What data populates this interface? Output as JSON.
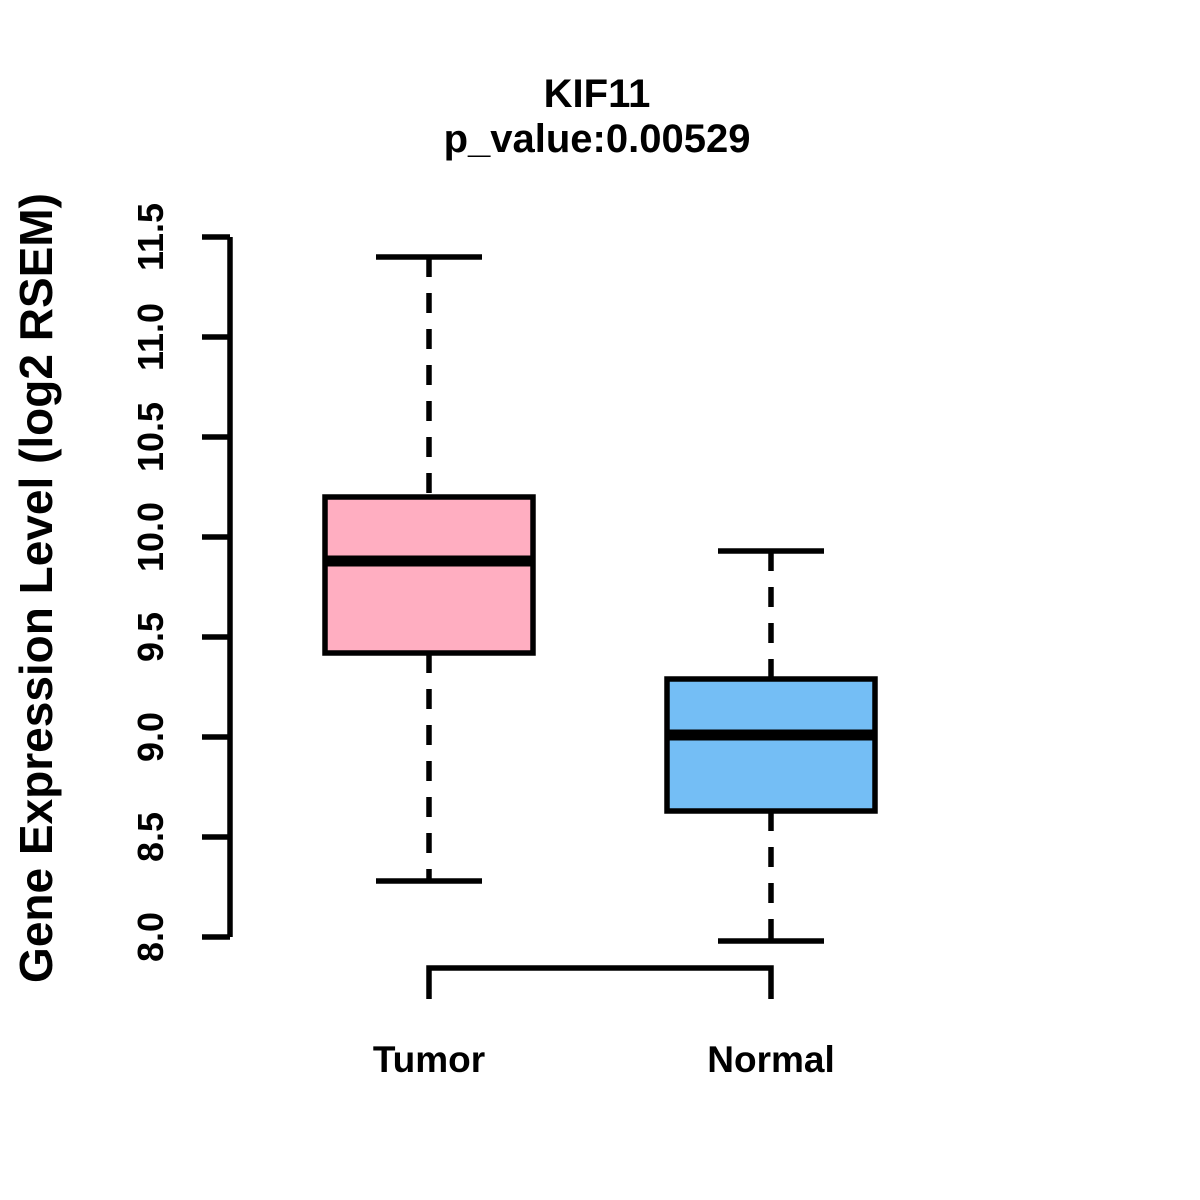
{
  "header": {
    "title": "KIF11",
    "subtitle": "p_value:0.00529"
  },
  "chart_data": {
    "type": "boxplot",
    "title": "KIF11",
    "subtitle": "p_value:0.00529",
    "xlabel": "",
    "ylabel": "Gene Expression Level (log2 RSEM)",
    "categories": [
      "Tumor",
      "Normal"
    ],
    "series": [
      {
        "name": "Tumor",
        "color": "#FFAEC1",
        "whisker_low": 8.28,
        "q1": 9.42,
        "median": 9.88,
        "q3": 10.2,
        "whisker_high": 11.4
      },
      {
        "name": "Normal",
        "color": "#74BEF5",
        "whisker_low": 7.98,
        "q1": 8.63,
        "median": 9.01,
        "q3": 9.29,
        "whisker_high": 9.93
      }
    ],
    "ylim": [
      8.0,
      11.5
    ],
    "yticks": [
      8.0,
      8.5,
      9.0,
      9.5,
      10.0,
      10.5,
      11.0,
      11.5
    ],
    "ytick_labels": [
      "8.0",
      "8.5",
      "9.0",
      "9.5",
      "10.0",
      "10.5",
      "11.0",
      "11.5"
    ],
    "grid": false,
    "legend": "none",
    "ink_color": "#000000",
    "background_color": "#FFFFFF",
    "whisker_style": "dashed"
  }
}
